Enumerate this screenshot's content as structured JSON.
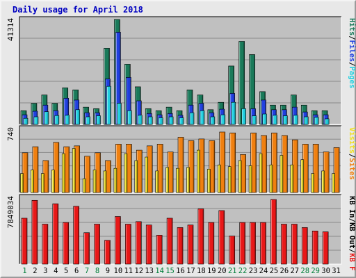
{
  "chart_data": {
    "type": "bar",
    "title": "Daily usage for April 2018",
    "categories": [
      "1",
      "2",
      "3",
      "4",
      "5",
      "6",
      "7",
      "8",
      "9",
      "10",
      "11",
      "12",
      "13",
      "14",
      "15",
      "16",
      "17",
      "18",
      "19",
      "20",
      "21",
      "22",
      "23",
      "24",
      "25",
      "26",
      "27",
      "28",
      "29",
      "30",
      "31"
    ],
    "weekend_days": [
      "1",
      "7",
      "8",
      "14",
      "15",
      "21",
      "22",
      "28",
      "29"
    ],
    "panels": [
      {
        "name": "requests",
        "max_label": "41314",
        "ylim": [
          0,
          41314
        ],
        "legend": [
          "Hits",
          "/",
          "Files",
          "/",
          "Pages"
        ],
        "series": [
          {
            "name": "Hits",
            "color": "#1a7a5a",
            "values": [
              5400,
              8300,
              11600,
              8300,
              14400,
              13600,
              6800,
              6200,
              30000,
              41314,
              23700,
              14800,
              6200,
              5400,
              6800,
              5400,
              13600,
              11600,
              5800,
              8700,
              23000,
              32700,
              27500,
              12900,
              7600,
              7600,
              11600,
              7600,
              5400,
              5400,
              0
            ]
          },
          {
            "name": "Files",
            "color": "#2040e0",
            "values": [
              3800,
              5200,
              7600,
              5400,
              10300,
              9600,
              4600,
              4600,
              17900,
              36300,
              18500,
              9300,
              4300,
              3800,
              4300,
              3600,
              7600,
              8300,
              4600,
              6000,
              12200,
              0,
              6200,
              9600,
              5800,
              5800,
              6800,
              4900,
              3800,
              3800,
              0
            ]
          },
          {
            "name": "Pages",
            "color": "#20d0e0",
            "values": [
              2400,
              3000,
              5000,
              3500,
              3600,
              5800,
              3000,
              3400,
              15000,
              8300,
              5400,
              3600,
              3000,
              2600,
              3000,
              2600,
              4600,
              5400,
              3000,
              3800,
              8700,
              6200,
              3400,
              4100,
              3600,
              3400,
              3600,
              3000,
              2800,
              2200,
              0
            ]
          }
        ]
      },
      {
        "name": "visitors",
        "max_label": "740",
        "ylim": [
          0,
          740
        ],
        "legend": [
          "Visits",
          "/",
          "Sites"
        ],
        "series": [
          {
            "name": "Sites",
            "color": "#f08010",
            "values": [
              460,
              530,
              370,
              580,
              530,
              540,
              420,
              460,
              370,
              560,
              560,
              490,
              540,
              560,
              470,
              640,
              600,
              620,
              600,
              700,
              690,
              440,
              690,
              660,
              690,
              660,
              610,
              560,
              560,
              470,
              520
            ]
          },
          {
            "name": "Visits",
            "color": "#f0e020",
            "values": [
              220,
              260,
              220,
              260,
              450,
              510,
              160,
              260,
              250,
              280,
              450,
              370,
              410,
              250,
              290,
              280,
              290,
              490,
              270,
              320,
              300,
              370,
              310,
              450,
              320,
              430,
              320,
              380,
              220,
              250,
              220
            ]
          }
        ]
      },
      {
        "name": "traffic",
        "max_label": "7849034",
        "ylim": [
          0,
          7849034
        ],
        "legend": [
          "KB In",
          "/",
          "KB Out",
          "/",
          "KB F"
        ],
        "series": [
          {
            "name": "KB F",
            "color": "#e81818",
            "values": [
              5400000,
              7500000,
              4700000,
              7100000,
              4900000,
              6800000,
              3700000,
              4700000,
              2800000,
              5600000,
              4700000,
              5000000,
              4600000,
              3400000,
              5400000,
              4300000,
              4600000,
              6500000,
              4900000,
              6300000,
              3300000,
              4900000,
              4900000,
              4900000,
              7600000,
              4700000,
              4700000,
              4300000,
              3900000,
              3800000,
              0
            ]
          }
        ]
      }
    ]
  }
}
